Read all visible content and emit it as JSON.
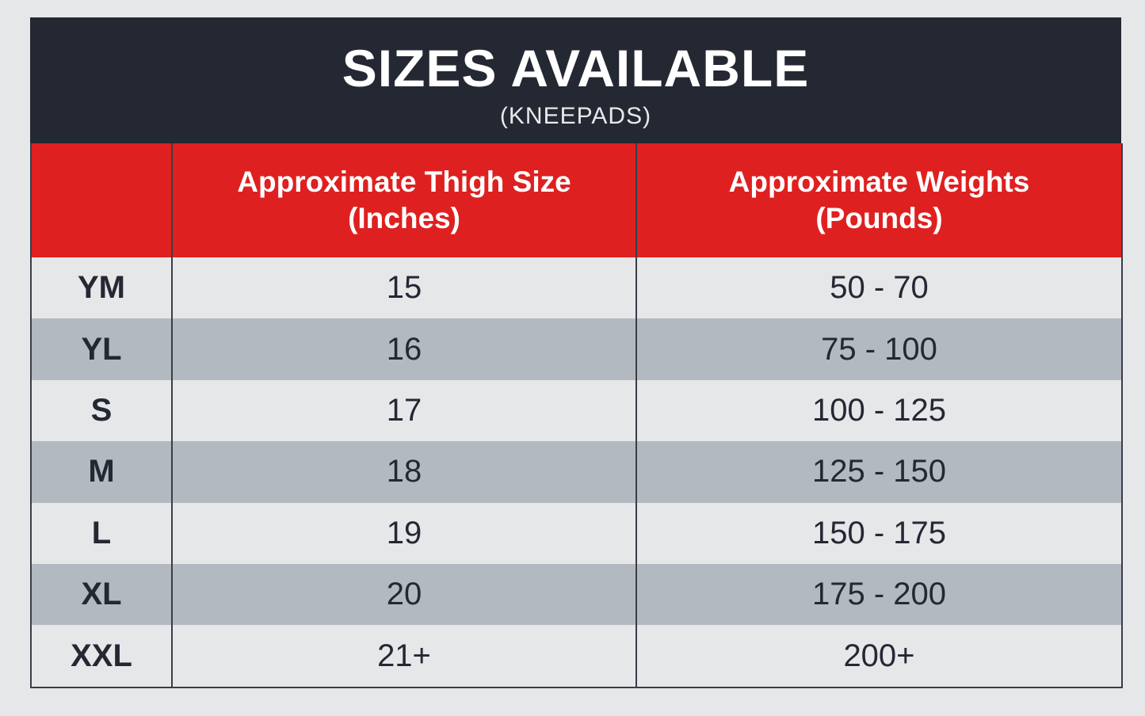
{
  "header": {
    "title": "SIZES AVAILABLE",
    "subtitle": "(KNEEPADS)"
  },
  "colors": {
    "title_bg": "#232833",
    "header_bg": "#df2020",
    "row_light": "#e6e7e9",
    "row_dark": "#b3b9c0"
  },
  "table": {
    "columns": [
      "",
      "Approximate Thigh Size\n(Inches)",
      "Approximate Weights\n(Pounds)"
    ],
    "rows": [
      [
        "YM",
        "15",
        "50 - 70"
      ],
      [
        "YL",
        "16",
        "75 - 100"
      ],
      [
        "S",
        "17",
        "100 - 125"
      ],
      [
        "M",
        "18",
        "125 - 150"
      ],
      [
        "L",
        "19",
        "150 - 175"
      ],
      [
        "XL",
        "20",
        "175 - 200"
      ],
      [
        "XXL",
        "21+",
        "200+"
      ]
    ]
  }
}
